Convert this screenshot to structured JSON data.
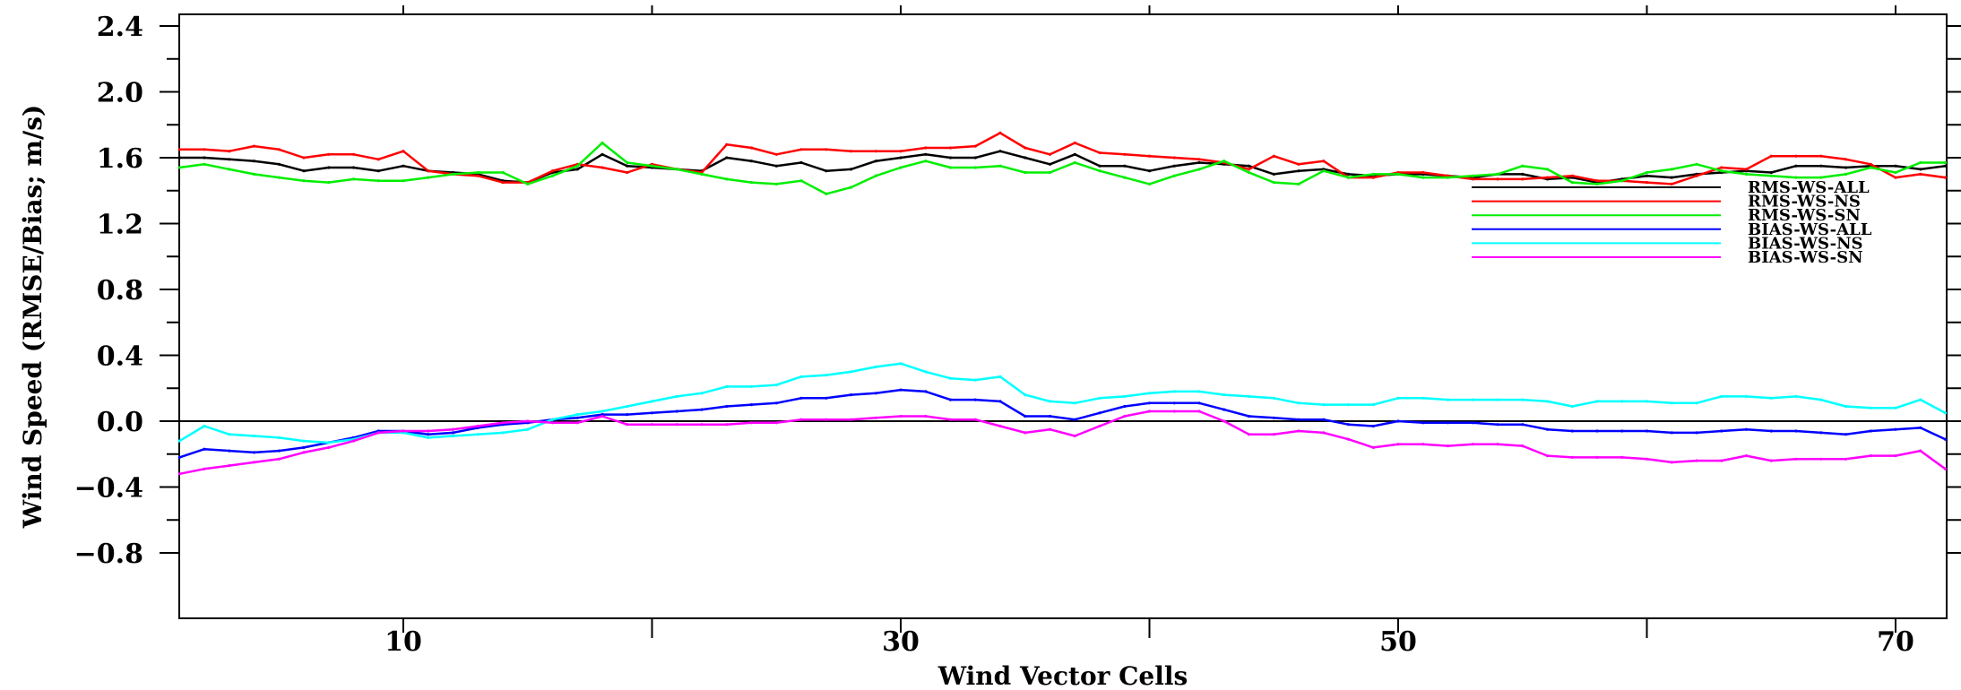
{
  "chart_data": {
    "type": "line",
    "title": "",
    "xlabel": "Wind Vector Cells",
    "ylabel": "Wind Speed (RMSE/Bias; m/s)",
    "xlim": [
      1,
      72
    ],
    "ylim": [
      -1.0,
      2.45
    ],
    "x_ticks": [
      10,
      30,
      50,
      70
    ],
    "x_tick_labels": [
      "10",
      "30",
      "50",
      "70"
    ],
    "y_ticks": [
      2.4,
      2.0,
      1.6,
      1.2,
      0.8,
      0.4,
      0.0,
      -0.4,
      -0.8
    ],
    "y_tick_labels": [
      "2.4",
      "2.0",
      "1.6",
      "1.2",
      "0.8",
      "0.4",
      "0.0",
      "−0.4",
      "−0.8"
    ],
    "zero_line": true,
    "grid": false,
    "legend_position": "right-middle",
    "x": [
      1,
      2,
      3,
      4,
      5,
      6,
      7,
      8,
      9,
      10,
      11,
      12,
      13,
      14,
      15,
      16,
      17,
      18,
      19,
      20,
      21,
      22,
      23,
      24,
      25,
      26,
      27,
      28,
      29,
      30,
      31,
      32,
      33,
      34,
      35,
      36,
      37,
      38,
      39,
      40,
      41,
      42,
      43,
      44,
      45,
      46,
      47,
      48,
      49,
      50,
      51,
      52,
      53,
      54,
      55,
      56,
      57,
      58,
      59,
      60,
      61,
      62,
      63,
      64,
      65,
      66,
      67,
      68,
      69,
      70,
      71,
      72
    ],
    "series": [
      {
        "name": "RMS-WS-ALL",
        "color": "#000000",
        "values": [
          1.6,
          1.6,
          1.59,
          1.58,
          1.56,
          1.52,
          1.54,
          1.54,
          1.52,
          1.55,
          1.52,
          1.51,
          1.5,
          1.46,
          1.45,
          1.51,
          1.53,
          1.62,
          1.55,
          1.54,
          1.53,
          1.52,
          1.6,
          1.58,
          1.55,
          1.57,
          1.52,
          1.53,
          1.58,
          1.6,
          1.62,
          1.6,
          1.6,
          1.64,
          1.6,
          1.56,
          1.62,
          1.55,
          1.55,
          1.52,
          1.55,
          1.57,
          1.56,
          1.55,
          1.5,
          1.52,
          1.53,
          1.5,
          1.49,
          1.5,
          1.5,
          1.49,
          1.48,
          1.5,
          1.5,
          1.47,
          1.48,
          1.45,
          1.47,
          1.49,
          1.48,
          1.5,
          1.51,
          1.52,
          1.51,
          1.55,
          1.55,
          1.54,
          1.55,
          1.55,
          1.53,
          1.55
        ]
      },
      {
        "name": "RMS-WS-NS",
        "color": "#ff0000",
        "values": [
          1.65,
          1.65,
          1.64,
          1.67,
          1.65,
          1.6,
          1.62,
          1.62,
          1.59,
          1.64,
          1.52,
          1.5,
          1.49,
          1.45,
          1.45,
          1.52,
          1.56,
          1.54,
          1.51,
          1.56,
          1.53,
          1.51,
          1.68,
          1.66,
          1.62,
          1.65,
          1.65,
          1.64,
          1.64,
          1.64,
          1.66,
          1.66,
          1.67,
          1.75,
          1.66,
          1.62,
          1.69,
          1.63,
          1.62,
          1.61,
          1.6,
          1.59,
          1.57,
          1.53,
          1.61,
          1.56,
          1.58,
          1.48,
          1.48,
          1.51,
          1.51,
          1.49,
          1.47,
          1.47,
          1.47,
          1.48,
          1.49,
          1.46,
          1.46,
          1.45,
          1.44,
          1.49,
          1.54,
          1.53,
          1.61,
          1.61,
          1.61,
          1.59,
          1.56,
          1.48,
          1.5,
          1.48
        ]
      },
      {
        "name": "RMS-WS-SN",
        "color": "#00ee00",
        "values": [
          1.54,
          1.56,
          1.53,
          1.5,
          1.48,
          1.46,
          1.45,
          1.47,
          1.46,
          1.46,
          1.48,
          1.5,
          1.51,
          1.51,
          1.44,
          1.49,
          1.55,
          1.69,
          1.57,
          1.55,
          1.53,
          1.5,
          1.47,
          1.45,
          1.44,
          1.46,
          1.38,
          1.42,
          1.49,
          1.54,
          1.58,
          1.54,
          1.54,
          1.55,
          1.51,
          1.51,
          1.57,
          1.52,
          1.48,
          1.44,
          1.49,
          1.53,
          1.58,
          1.51,
          1.45,
          1.44,
          1.52,
          1.48,
          1.5,
          1.5,
          1.48,
          1.48,
          1.49,
          1.5,
          1.55,
          1.53,
          1.45,
          1.44,
          1.46,
          1.51,
          1.53,
          1.56,
          1.52,
          1.5,
          1.49,
          1.48,
          1.48,
          1.5,
          1.54,
          1.51,
          1.57,
          1.57
        ]
      },
      {
        "name": "BIAS-WS-ALL",
        "color": "#0000ff",
        "values": [
          -0.22,
          -0.17,
          -0.18,
          -0.19,
          -0.18,
          -0.16,
          -0.13,
          -0.1,
          -0.06,
          -0.06,
          -0.08,
          -0.07,
          -0.04,
          -0.02,
          -0.01,
          0.01,
          0.02,
          0.04,
          0.04,
          0.05,
          0.06,
          0.07,
          0.09,
          0.1,
          0.11,
          0.14,
          0.14,
          0.16,
          0.17,
          0.19,
          0.18,
          0.13,
          0.13,
          0.12,
          0.03,
          0.03,
          0.01,
          0.05,
          0.09,
          0.11,
          0.11,
          0.11,
          0.07,
          0.03,
          0.02,
          0.01,
          0.01,
          -0.02,
          -0.03,
          0.0,
          -0.01,
          -0.01,
          -0.01,
          -0.02,
          -0.02,
          -0.05,
          -0.06,
          -0.06,
          -0.06,
          -0.06,
          -0.07,
          -0.07,
          -0.06,
          -0.05,
          -0.06,
          -0.06,
          -0.07,
          -0.08,
          -0.06,
          -0.05,
          -0.04,
          -0.11
        ]
      },
      {
        "name": "BIAS-WS-NS",
        "color": "#00ffff",
        "values": [
          -0.12,
          -0.03,
          -0.08,
          -0.09,
          -0.1,
          -0.12,
          -0.13,
          -0.11,
          -0.07,
          -0.07,
          -0.1,
          -0.09,
          -0.08,
          -0.07,
          -0.05,
          0.01,
          0.04,
          0.06,
          0.09,
          0.12,
          0.15,
          0.17,
          0.21,
          0.21,
          0.22,
          0.27,
          0.28,
          0.3,
          0.33,
          0.35,
          0.3,
          0.26,
          0.25,
          0.27,
          0.16,
          0.12,
          0.11,
          0.14,
          0.15,
          0.17,
          0.18,
          0.18,
          0.16,
          0.15,
          0.14,
          0.11,
          0.1,
          0.1,
          0.1,
          0.14,
          0.14,
          0.13,
          0.13,
          0.13,
          0.13,
          0.12,
          0.09,
          0.12,
          0.12,
          0.12,
          0.11,
          0.11,
          0.15,
          0.15,
          0.14,
          0.15,
          0.13,
          0.09,
          0.08,
          0.08,
          0.13,
          0.05
        ]
      },
      {
        "name": "BIAS-WS-SN",
        "color": "#ff00ff",
        "values": [
          -0.32,
          -0.29,
          -0.27,
          -0.25,
          -0.23,
          -0.19,
          -0.16,
          -0.12,
          -0.07,
          -0.06,
          -0.06,
          -0.05,
          -0.03,
          -0.01,
          0.0,
          -0.01,
          -0.01,
          0.03,
          -0.02,
          -0.02,
          -0.02,
          -0.02,
          -0.02,
          -0.01,
          -0.01,
          0.01,
          0.01,
          0.01,
          0.02,
          0.03,
          0.03,
          0.01,
          0.01,
          -0.03,
          -0.07,
          -0.05,
          -0.09,
          -0.03,
          0.03,
          0.06,
          0.06,
          0.06,
          0.0,
          -0.08,
          -0.08,
          -0.06,
          -0.07,
          -0.11,
          -0.16,
          -0.14,
          -0.14,
          -0.15,
          -0.14,
          -0.14,
          -0.15,
          -0.21,
          -0.22,
          -0.22,
          -0.22,
          -0.23,
          -0.25,
          -0.24,
          -0.24,
          -0.21,
          -0.24,
          -0.23,
          -0.23,
          -0.23,
          -0.21,
          -0.21,
          -0.18,
          -0.29
        ]
      }
    ]
  }
}
